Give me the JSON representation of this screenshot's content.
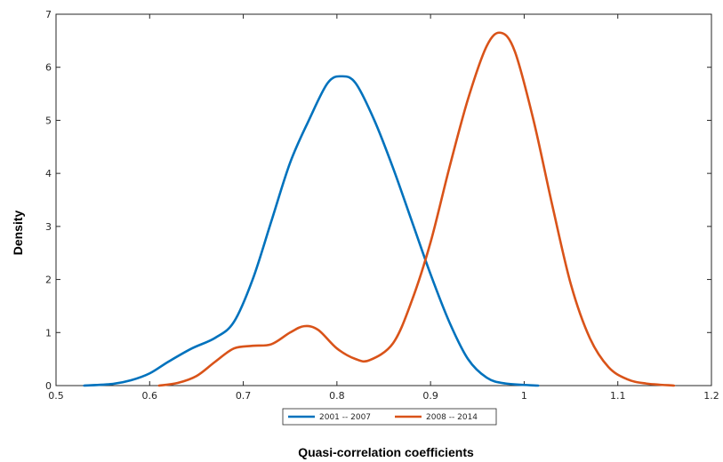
{
  "chart_data": {
    "type": "line",
    "title": "",
    "xlabel": "Quasi-correlation coefficients",
    "ylabel": "Density",
    "xlim": [
      0.5,
      1.2
    ],
    "ylim": [
      0,
      7
    ],
    "x_ticks": [
      "0.5",
      "0.6",
      "0.7",
      "0.8",
      "0.9",
      "1",
      "1.1",
      "1.2"
    ],
    "y_ticks": [
      "0",
      "1",
      "2",
      "3",
      "4",
      "5",
      "6",
      "7"
    ],
    "grid": false,
    "legend_position": "bottom",
    "series": [
      {
        "name": "2001 -- 2007",
        "color": "#0072BD",
        "points": [
          [
            0.53,
            0.0
          ],
          [
            0.56,
            0.03
          ],
          [
            0.58,
            0.1
          ],
          [
            0.6,
            0.23
          ],
          [
            0.62,
            0.45
          ],
          [
            0.645,
            0.7
          ],
          [
            0.67,
            0.9
          ],
          [
            0.69,
            1.2
          ],
          [
            0.71,
            2.0
          ],
          [
            0.73,
            3.1
          ],
          [
            0.75,
            4.2
          ],
          [
            0.77,
            5.0
          ],
          [
            0.79,
            5.7
          ],
          [
            0.805,
            5.83
          ],
          [
            0.82,
            5.7
          ],
          [
            0.84,
            5.0
          ],
          [
            0.86,
            4.1
          ],
          [
            0.88,
            3.1
          ],
          [
            0.9,
            2.1
          ],
          [
            0.92,
            1.2
          ],
          [
            0.94,
            0.5
          ],
          [
            0.96,
            0.15
          ],
          [
            0.98,
            0.04
          ],
          [
            1.015,
            0.0
          ]
        ]
      },
      {
        "name": "2008 -- 2014",
        "color": "#D95319",
        "points": [
          [
            0.61,
            0.0
          ],
          [
            0.63,
            0.05
          ],
          [
            0.65,
            0.18
          ],
          [
            0.67,
            0.45
          ],
          [
            0.69,
            0.7
          ],
          [
            0.71,
            0.75
          ],
          [
            0.73,
            0.78
          ],
          [
            0.75,
            1.0
          ],
          [
            0.765,
            1.12
          ],
          [
            0.78,
            1.05
          ],
          [
            0.8,
            0.7
          ],
          [
            0.82,
            0.5
          ],
          [
            0.835,
            0.48
          ],
          [
            0.86,
            0.8
          ],
          [
            0.88,
            1.6
          ],
          [
            0.9,
            2.7
          ],
          [
            0.92,
            4.1
          ],
          [
            0.94,
            5.4
          ],
          [
            0.96,
            6.4
          ],
          [
            0.975,
            6.65
          ],
          [
            0.99,
            6.3
          ],
          [
            1.01,
            5.0
          ],
          [
            1.03,
            3.4
          ],
          [
            1.05,
            1.9
          ],
          [
            1.07,
            0.9
          ],
          [
            1.09,
            0.35
          ],
          [
            1.11,
            0.12
          ],
          [
            1.13,
            0.04
          ],
          [
            1.16,
            0.0
          ]
        ]
      }
    ]
  }
}
